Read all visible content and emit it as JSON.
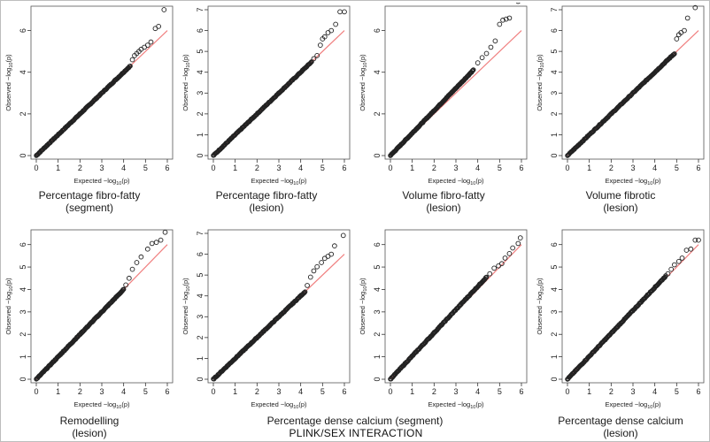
{
  "footer": "PLINK/SEX INTERACTION",
  "colors": {
    "points": "#222222",
    "reference_line": "#f08080",
    "frame": "#555555"
  },
  "panel_common": {
    "x_label": "Expected  −log",
    "y_label": "Observed  −log",
    "label_subscript": "10",
    "label_suffix": "(p)"
  },
  "chart_data": [
    {
      "type": "scatter",
      "title_line1": "Percentage fibro-fatty",
      "title_line2": "(segment)",
      "xlim": [
        0,
        6
      ],
      "ylim": [
        0,
        7
      ],
      "x_ticks": [
        0,
        1,
        2,
        3,
        4,
        5,
        6
      ],
      "y_ticks": [
        0,
        2,
        4,
        6
      ],
      "bulk_end": [
        4.3,
        4.3
      ],
      "reference_line": [
        [
          0,
          0
        ],
        [
          6,
          6
        ]
      ],
      "tail_points": [
        [
          4.4,
          4.6
        ],
        [
          4.5,
          4.8
        ],
        [
          4.6,
          4.9
        ],
        [
          4.7,
          5.0
        ],
        [
          4.8,
          5.1
        ],
        [
          4.95,
          5.2
        ],
        [
          5.1,
          5.3
        ],
        [
          5.25,
          5.45
        ],
        [
          5.45,
          6.1
        ],
        [
          5.6,
          6.2
        ],
        [
          5.85,
          7.0
        ]
      ]
    },
    {
      "type": "scatter",
      "title_line1": "Percentage fibro-fatty",
      "title_line2": "(lesion)",
      "xlim": [
        0,
        6
      ],
      "ylim": [
        0,
        7
      ],
      "x_ticks": [
        0,
        1,
        2,
        3,
        4,
        5,
        6
      ],
      "y_ticks": [
        0,
        1,
        2,
        3,
        4,
        5,
        6,
        7
      ],
      "bulk_end": [
        4.5,
        4.5
      ],
      "reference_line": [
        [
          0,
          0
        ],
        [
          6,
          6
        ]
      ],
      "tail_points": [
        [
          4.6,
          4.65
        ],
        [
          4.75,
          4.8
        ],
        [
          4.9,
          5.3
        ],
        [
          5.0,
          5.6
        ],
        [
          5.1,
          5.7
        ],
        [
          5.25,
          5.9
        ],
        [
          5.4,
          6.0
        ],
        [
          5.6,
          6.3
        ],
        [
          5.8,
          6.9
        ],
        [
          6.0,
          6.9
        ]
      ]
    },
    {
      "type": "scatter",
      "title_line1": "Volume fibro-fatty",
      "title_line2": "(lesion)",
      "xlim": [
        0,
        6
      ],
      "ylim": [
        0,
        7
      ],
      "x_ticks": [
        0,
        1,
        2,
        3,
        4,
        5,
        6
      ],
      "y_ticks": [
        0,
        2,
        4,
        6
      ],
      "bulk_end": [
        3.8,
        4.1
      ],
      "reference_line": [
        [
          0,
          0
        ],
        [
          6,
          6
        ]
      ],
      "tail_points": [
        [
          4.0,
          4.45
        ],
        [
          4.2,
          4.7
        ],
        [
          4.4,
          4.9
        ],
        [
          4.6,
          5.2
        ],
        [
          4.8,
          5.5
        ],
        [
          5.0,
          6.3
        ],
        [
          5.15,
          6.5
        ],
        [
          5.3,
          6.55
        ],
        [
          5.45,
          6.6
        ],
        [
          5.85,
          7.4
        ]
      ]
    },
    {
      "type": "scatter",
      "title_line1": "Volume fibrotic",
      "title_line2": "(lesion)",
      "xlim": [
        0,
        6
      ],
      "ylim": [
        0,
        7
      ],
      "x_ticks": [
        0,
        1,
        2,
        3,
        4,
        5,
        6
      ],
      "y_ticks": [
        0,
        1,
        2,
        3,
        4,
        5,
        6,
        7
      ],
      "bulk_end": [
        4.9,
        4.9
      ],
      "reference_line": [
        [
          0,
          0
        ],
        [
          6,
          6
        ]
      ],
      "tail_points": [
        [
          5.0,
          5.6
        ],
        [
          5.1,
          5.8
        ],
        [
          5.2,
          5.9
        ],
        [
          5.35,
          6.0
        ],
        [
          5.5,
          6.6
        ],
        [
          5.85,
          7.1
        ]
      ]
    },
    {
      "type": "scatter",
      "title_line1": "Remodelling",
      "title_line2": "(lesion)",
      "xlim": [
        0,
        6
      ],
      "ylim": [
        0,
        6.5
      ],
      "x_ticks": [
        0,
        1,
        2,
        3,
        4,
        5,
        6
      ],
      "y_ticks": [
        0,
        1,
        2,
        3,
        4,
        5,
        6
      ],
      "bulk_end": [
        4.0,
        4.0
      ],
      "reference_line": [
        [
          0,
          0
        ],
        [
          6,
          6
        ]
      ],
      "tail_points": [
        [
          4.1,
          4.2
        ],
        [
          4.25,
          4.5
        ],
        [
          4.4,
          4.9
        ],
        [
          4.6,
          5.2
        ],
        [
          4.8,
          5.45
        ],
        [
          5.1,
          5.8
        ],
        [
          5.3,
          6.05
        ],
        [
          5.5,
          6.1
        ],
        [
          5.7,
          6.2
        ],
        [
          5.9,
          6.55
        ]
      ]
    },
    {
      "type": "scatter",
      "title_line1": "Percentage dense calcium (segment)",
      "title_line2": "",
      "xlim": [
        0,
        6
      ],
      "ylim": [
        0,
        7
      ],
      "x_ticks": [
        0,
        1,
        2,
        3,
        4,
        5,
        6
      ],
      "y_ticks": [
        0,
        1,
        2,
        3,
        4,
        5,
        6,
        7
      ],
      "bulk_end": [
        4.2,
        4.2
      ],
      "reference_line": [
        [
          0,
          0
        ],
        [
          6,
          6
        ]
      ],
      "tail_points": [
        [
          4.3,
          4.5
        ],
        [
          4.45,
          4.9
        ],
        [
          4.6,
          5.2
        ],
        [
          4.75,
          5.4
        ],
        [
          4.95,
          5.6
        ],
        [
          5.1,
          5.8
        ],
        [
          5.25,
          5.9
        ],
        [
          5.4,
          6.0
        ],
        [
          5.55,
          6.4
        ],
        [
          5.95,
          6.9
        ]
      ]
    },
    {
      "type": "scatter",
      "title_line1": "",
      "title_line2": "",
      "xlim": [
        0,
        6
      ],
      "ylim": [
        0,
        6.5
      ],
      "x_ticks": [
        0,
        1,
        2,
        3,
        4,
        5,
        6
      ],
      "y_ticks": [
        0,
        1,
        2,
        3,
        4,
        5,
        6
      ],
      "bulk_end": [
        4.4,
        4.55
      ],
      "reference_line": [
        [
          0,
          0
        ],
        [
          6,
          6
        ]
      ],
      "tail_points": [
        [
          4.55,
          4.7
        ],
        [
          4.75,
          4.95
        ],
        [
          4.95,
          5.05
        ],
        [
          5.1,
          5.15
        ],
        [
          5.25,
          5.4
        ],
        [
          5.45,
          5.6
        ],
        [
          5.6,
          5.85
        ],
        [
          5.85,
          6.05
        ],
        [
          5.95,
          6.3
        ]
      ]
    },
    {
      "type": "scatter",
      "title_line1": "Percentage dense calcium",
      "title_line2": "(lesion)",
      "xlim": [
        0,
        6
      ],
      "ylim": [
        0,
        6.5
      ],
      "x_ticks": [
        0,
        1,
        2,
        3,
        4,
        5,
        6
      ],
      "y_ticks": [
        0,
        1,
        2,
        3,
        4,
        5,
        6
      ],
      "bulk_end": [
        4.5,
        4.6
      ],
      "reference_line": [
        [
          0,
          0
        ],
        [
          6,
          6
        ]
      ],
      "tail_points": [
        [
          4.6,
          4.7
        ],
        [
          4.75,
          4.9
        ],
        [
          4.9,
          5.1
        ],
        [
          5.1,
          5.25
        ],
        [
          5.25,
          5.4
        ],
        [
          5.45,
          5.75
        ],
        [
          5.65,
          5.8
        ],
        [
          5.85,
          6.2
        ],
        [
          6.0,
          6.2
        ]
      ]
    }
  ]
}
